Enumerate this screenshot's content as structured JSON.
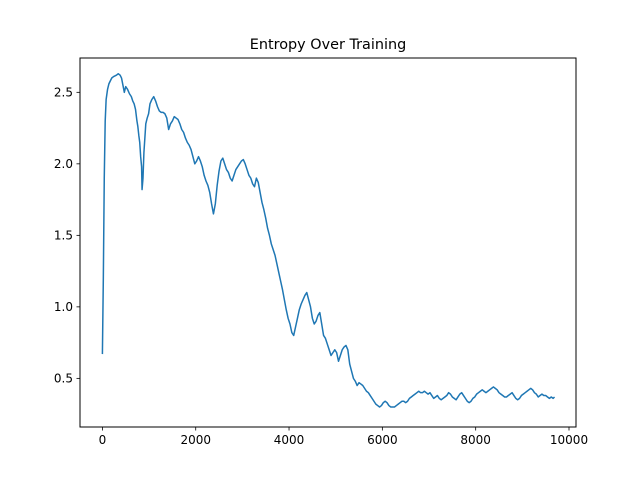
{
  "chart_data": {
    "type": "line",
    "title": "Entropy Over Training",
    "xlabel": "",
    "ylabel": "",
    "xlim": [
      -480,
      10150
    ],
    "ylim": [
      0.16,
      2.74
    ],
    "grid": false,
    "legend": "none",
    "x_ticks": [
      0,
      2000,
      4000,
      6000,
      8000,
      10000
    ],
    "x_tick_labels": [
      "0",
      "2000",
      "4000",
      "6000",
      "8000",
      "10000"
    ],
    "y_ticks": [
      0.5,
      1.0,
      1.5,
      2.0,
      2.5
    ],
    "y_tick_labels": [
      "0.5",
      "1.0",
      "1.5",
      "2.0",
      "2.5"
    ],
    "series": [
      {
        "color": "#1f77b4",
        "points": [
          [
            0,
            0.67
          ],
          [
            20,
            1.2
          ],
          [
            40,
            1.9
          ],
          [
            60,
            2.3
          ],
          [
            80,
            2.45
          ],
          [
            110,
            2.52
          ],
          [
            140,
            2.56
          ],
          [
            170,
            2.58
          ],
          [
            200,
            2.6
          ],
          [
            240,
            2.61
          ],
          [
            300,
            2.62
          ],
          [
            340,
            2.63
          ],
          [
            380,
            2.62
          ],
          [
            410,
            2.6
          ],
          [
            440,
            2.55
          ],
          [
            470,
            2.5
          ],
          [
            500,
            2.54
          ],
          [
            540,
            2.52
          ],
          [
            580,
            2.49
          ],
          [
            620,
            2.47
          ],
          [
            650,
            2.44
          ],
          [
            680,
            2.42
          ],
          [
            710,
            2.38
          ],
          [
            740,
            2.3
          ],
          [
            760,
            2.26
          ],
          [
            780,
            2.2
          ],
          [
            800,
            2.15
          ],
          [
            820,
            2.05
          ],
          [
            840,
            1.98
          ],
          [
            850,
            1.82
          ],
          [
            870,
            1.9
          ],
          [
            890,
            2.08
          ],
          [
            910,
            2.18
          ],
          [
            930,
            2.28
          ],
          [
            960,
            2.32
          ],
          [
            990,
            2.35
          ],
          [
            1020,
            2.42
          ],
          [
            1060,
            2.45
          ],
          [
            1100,
            2.47
          ],
          [
            1140,
            2.44
          ],
          [
            1180,
            2.4
          ],
          [
            1220,
            2.37
          ],
          [
            1260,
            2.36
          ],
          [
            1300,
            2.36
          ],
          [
            1340,
            2.35
          ],
          [
            1380,
            2.32
          ],
          [
            1420,
            2.24
          ],
          [
            1460,
            2.28
          ],
          [
            1500,
            2.3
          ],
          [
            1540,
            2.33
          ],
          [
            1580,
            2.32
          ],
          [
            1620,
            2.31
          ],
          [
            1660,
            2.28
          ],
          [
            1700,
            2.24
          ],
          [
            1740,
            2.22
          ],
          [
            1780,
            2.18
          ],
          [
            1820,
            2.15
          ],
          [
            1860,
            2.13
          ],
          [
            1900,
            2.1
          ],
          [
            1940,
            2.05
          ],
          [
            1980,
            2.0
          ],
          [
            2020,
            2.02
          ],
          [
            2060,
            2.05
          ],
          [
            2100,
            2.02
          ],
          [
            2140,
            1.98
          ],
          [
            2180,
            1.92
          ],
          [
            2220,
            1.88
          ],
          [
            2260,
            1.85
          ],
          [
            2300,
            1.8
          ],
          [
            2340,
            1.72
          ],
          [
            2380,
            1.65
          ],
          [
            2420,
            1.72
          ],
          [
            2460,
            1.85
          ],
          [
            2500,
            1.95
          ],
          [
            2540,
            2.02
          ],
          [
            2580,
            2.04
          ],
          [
            2620,
            2.0
          ],
          [
            2660,
            1.96
          ],
          [
            2700,
            1.94
          ],
          [
            2740,
            1.9
          ],
          [
            2780,
            1.88
          ],
          [
            2820,
            1.92
          ],
          [
            2860,
            1.96
          ],
          [
            2900,
            1.98
          ],
          [
            2940,
            2.0
          ],
          [
            2980,
            2.02
          ],
          [
            3020,
            2.03
          ],
          [
            3060,
            2.0
          ],
          [
            3100,
            1.96
          ],
          [
            3140,
            1.92
          ],
          [
            3180,
            1.9
          ],
          [
            3220,
            1.86
          ],
          [
            3260,
            1.84
          ],
          [
            3300,
            1.9
          ],
          [
            3340,
            1.87
          ],
          [
            3380,
            1.8
          ],
          [
            3420,
            1.73
          ],
          [
            3460,
            1.68
          ],
          [
            3500,
            1.62
          ],
          [
            3540,
            1.55
          ],
          [
            3580,
            1.5
          ],
          [
            3620,
            1.44
          ],
          [
            3660,
            1.4
          ],
          [
            3700,
            1.36
          ],
          [
            3740,
            1.3
          ],
          [
            3780,
            1.24
          ],
          [
            3820,
            1.18
          ],
          [
            3860,
            1.12
          ],
          [
            3900,
            1.05
          ],
          [
            3940,
            0.98
          ],
          [
            3980,
            0.92
          ],
          [
            4020,
            0.88
          ],
          [
            4060,
            0.82
          ],
          [
            4100,
            0.8
          ],
          [
            4140,
            0.86
          ],
          [
            4180,
            0.92
          ],
          [
            4220,
            0.98
          ],
          [
            4260,
            1.02
          ],
          [
            4300,
            1.05
          ],
          [
            4340,
            1.08
          ],
          [
            4380,
            1.1
          ],
          [
            4420,
            1.05
          ],
          [
            4460,
            1.0
          ],
          [
            4500,
            0.92
          ],
          [
            4540,
            0.88
          ],
          [
            4580,
            0.9
          ],
          [
            4620,
            0.94
          ],
          [
            4660,
            0.96
          ],
          [
            4700,
            0.88
          ],
          [
            4740,
            0.8
          ],
          [
            4780,
            0.78
          ],
          [
            4820,
            0.74
          ],
          [
            4860,
            0.7
          ],
          [
            4900,
            0.66
          ],
          [
            4940,
            0.68
          ],
          [
            4980,
            0.7
          ],
          [
            5020,
            0.68
          ],
          [
            5060,
            0.62
          ],
          [
            5100,
            0.66
          ],
          [
            5140,
            0.7
          ],
          [
            5180,
            0.72
          ],
          [
            5220,
            0.73
          ],
          [
            5260,
            0.7
          ],
          [
            5300,
            0.6
          ],
          [
            5340,
            0.55
          ],
          [
            5380,
            0.5
          ],
          [
            5420,
            0.48
          ],
          [
            5460,
            0.45
          ],
          [
            5500,
            0.47
          ],
          [
            5540,
            0.46
          ],
          [
            5580,
            0.45
          ],
          [
            5620,
            0.43
          ],
          [
            5660,
            0.41
          ],
          [
            5700,
            0.4
          ],
          [
            5740,
            0.38
          ],
          [
            5780,
            0.36
          ],
          [
            5820,
            0.34
          ],
          [
            5860,
            0.32
          ],
          [
            5900,
            0.31
          ],
          [
            5940,
            0.3
          ],
          [
            5980,
            0.31
          ],
          [
            6020,
            0.33
          ],
          [
            6060,
            0.34
          ],
          [
            6100,
            0.33
          ],
          [
            6140,
            0.31
          ],
          [
            6180,
            0.3
          ],
          [
            6220,
            0.3
          ],
          [
            6260,
            0.3
          ],
          [
            6300,
            0.31
          ],
          [
            6340,
            0.32
          ],
          [
            6380,
            0.33
          ],
          [
            6420,
            0.34
          ],
          [
            6460,
            0.34
          ],
          [
            6500,
            0.33
          ],
          [
            6540,
            0.34
          ],
          [
            6580,
            0.36
          ],
          [
            6620,
            0.37
          ],
          [
            6660,
            0.38
          ],
          [
            6700,
            0.39
          ],
          [
            6740,
            0.4
          ],
          [
            6780,
            0.41
          ],
          [
            6820,
            0.4
          ],
          [
            6860,
            0.4
          ],
          [
            6900,
            0.41
          ],
          [
            6940,
            0.4
          ],
          [
            6980,
            0.39
          ],
          [
            7020,
            0.4
          ],
          [
            7060,
            0.38
          ],
          [
            7100,
            0.36
          ],
          [
            7140,
            0.37
          ],
          [
            7180,
            0.38
          ],
          [
            7220,
            0.36
          ],
          [
            7260,
            0.35
          ],
          [
            7300,
            0.36
          ],
          [
            7340,
            0.37
          ],
          [
            7380,
            0.38
          ],
          [
            7420,
            0.4
          ],
          [
            7460,
            0.39
          ],
          [
            7500,
            0.37
          ],
          [
            7540,
            0.36
          ],
          [
            7580,
            0.35
          ],
          [
            7620,
            0.37
          ],
          [
            7660,
            0.39
          ],
          [
            7700,
            0.4
          ],
          [
            7740,
            0.38
          ],
          [
            7780,
            0.36
          ],
          [
            7820,
            0.34
          ],
          [
            7860,
            0.33
          ],
          [
            7900,
            0.34
          ],
          [
            7940,
            0.36
          ],
          [
            7980,
            0.37
          ],
          [
            8020,
            0.39
          ],
          [
            8060,
            0.4
          ],
          [
            8100,
            0.41
          ],
          [
            8140,
            0.42
          ],
          [
            8180,
            0.41
          ],
          [
            8220,
            0.4
          ],
          [
            8260,
            0.41
          ],
          [
            8300,
            0.42
          ],
          [
            8340,
            0.43
          ],
          [
            8380,
            0.44
          ],
          [
            8420,
            0.43
          ],
          [
            8460,
            0.42
          ],
          [
            8500,
            0.4
          ],
          [
            8540,
            0.39
          ],
          [
            8580,
            0.38
          ],
          [
            8620,
            0.37
          ],
          [
            8660,
            0.37
          ],
          [
            8700,
            0.38
          ],
          [
            8740,
            0.39
          ],
          [
            8780,
            0.4
          ],
          [
            8820,
            0.38
          ],
          [
            8860,
            0.36
          ],
          [
            8900,
            0.35
          ],
          [
            8940,
            0.36
          ],
          [
            8980,
            0.38
          ],
          [
            9020,
            0.39
          ],
          [
            9060,
            0.4
          ],
          [
            9100,
            0.41
          ],
          [
            9140,
            0.42
          ],
          [
            9180,
            0.43
          ],
          [
            9220,
            0.42
          ],
          [
            9260,
            0.4
          ],
          [
            9300,
            0.39
          ],
          [
            9340,
            0.37
          ],
          [
            9380,
            0.38
          ],
          [
            9420,
            0.39
          ],
          [
            9460,
            0.38
          ],
          [
            9500,
            0.38
          ],
          [
            9540,
            0.37
          ],
          [
            9580,
            0.36
          ],
          [
            9620,
            0.37
          ],
          [
            9660,
            0.36
          ],
          [
            9690,
            0.37
          ]
        ]
      }
    ]
  }
}
